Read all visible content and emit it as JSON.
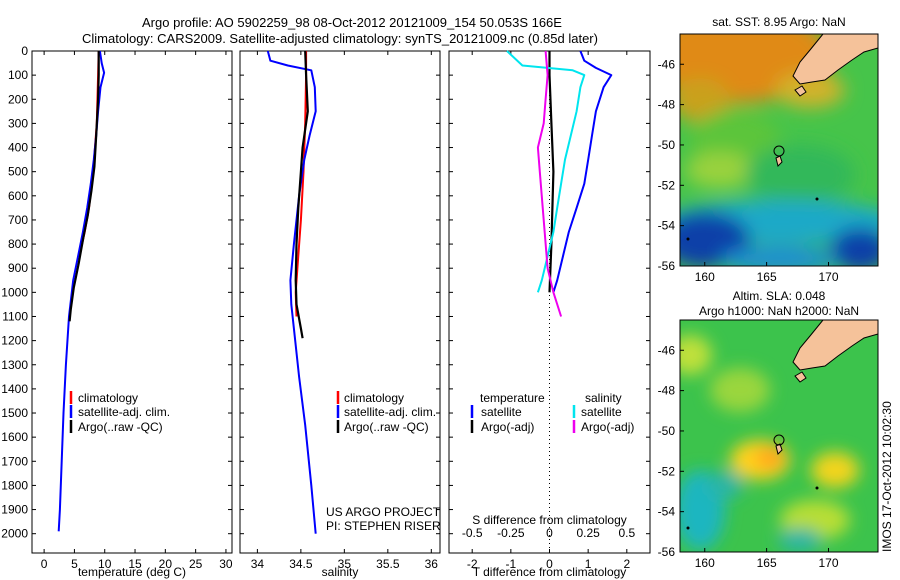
{
  "figure": {
    "title_line1": "Argo profile: AO 5902259_98 08-Oct-2012 20121009_154 50.053S 166E",
    "title_line2": "Climatology: CARS2009. Satellite-adjusted climatology: synTS_20121009.nc (0.85d later)",
    "side_stamp": "IMOS 17-Oct-2012 10:02:30",
    "project_line1": "US ARGO PROJECT",
    "project_line2": "PI: STEPHEN RISER"
  },
  "colors": {
    "climatology": "#ff0000",
    "satellite": "#0000ff",
    "argo": "#000000",
    "salinity_satellite": "#00e5ee",
    "salinity_argo": "#ee00ee",
    "land": "#f5c29a"
  },
  "chart_data": [
    {
      "type": "line",
      "name": "temperature-profile",
      "xlabel": "temperature (deg C)",
      "ylabel": "",
      "xlim": [
        -2,
        31
      ],
      "ylim": [
        0,
        2080
      ],
      "y_reversed": true,
      "xticks": [
        0,
        5,
        10,
        15,
        20,
        25,
        30
      ],
      "yticks": [
        0,
        100,
        200,
        300,
        400,
        500,
        600,
        700,
        800,
        900,
        1000,
        1100,
        1200,
        1300,
        1400,
        1500,
        1600,
        1700,
        1800,
        1900,
        2000
      ],
      "legend": [
        "climatology",
        "satellite-adj. clim.",
        "Argo(..raw -QC)"
      ],
      "legend_position": "lower-right",
      "series": [
        {
          "name": "climatology",
          "color": "#ff0000",
          "points": [
            [
              9.0,
              0
            ],
            [
              8.9,
              100
            ],
            [
              8.7,
              300
            ],
            [
              8.4,
              400
            ],
            [
              8.1,
              500
            ],
            [
              7.4,
              650
            ],
            [
              6.7,
              750
            ],
            [
              5.8,
              850
            ]
          ]
        },
        {
          "name": "satellite-adj. clim.",
          "color": "#0000ff",
          "points": [
            [
              9.2,
              0
            ],
            [
              9.5,
              50
            ],
            [
              9.9,
              90
            ],
            [
              9.3,
              150
            ],
            [
              8.9,
              250
            ],
            [
              8.6,
              350
            ],
            [
              8.2,
              450
            ],
            [
              7.7,
              550
            ],
            [
              7.1,
              650
            ],
            [
              6.4,
              750
            ],
            [
              5.6,
              850
            ],
            [
              4.8,
              950
            ],
            [
              4.1,
              1100
            ],
            [
              3.6,
              1300
            ],
            [
              3.2,
              1500
            ],
            [
              2.9,
              1700
            ],
            [
              2.6,
              1900
            ],
            [
              2.4,
              1990
            ]
          ]
        },
        {
          "name": "Argo(..raw -QC)",
          "color": "#000000",
          "points": [
            [
              9.0,
              0
            ],
            [
              9.0,
              100
            ],
            [
              8.9,
              200
            ],
            [
              8.6,
              350
            ],
            [
              8.3,
              480
            ],
            [
              7.8,
              580
            ],
            [
              7.2,
              680
            ],
            [
              6.5,
              770
            ],
            [
              5.7,
              880
            ],
            [
              4.9,
              980
            ],
            [
              4.4,
              1070
            ],
            [
              4.2,
              1120
            ]
          ]
        }
      ]
    },
    {
      "type": "line",
      "name": "salinity-profile",
      "xlabel": "salinity",
      "ylabel": "",
      "xlim": [
        33.8,
        36.1
      ],
      "ylim": [
        0,
        2080
      ],
      "y_reversed": true,
      "xticks": [
        34,
        34.5,
        35,
        35.5,
        36
      ],
      "legend": [
        "climatology",
        "satellite-adj. clim.",
        "Argo(..raw -QC)"
      ],
      "legend_position": "lower-right",
      "series": [
        {
          "name": "climatology",
          "color": "#ff0000",
          "points": [
            [
              34.56,
              0
            ],
            [
              34.56,
              100
            ],
            [
              34.55,
              300
            ],
            [
              34.53,
              500
            ],
            [
              34.5,
              700
            ],
            [
              34.46,
              900
            ],
            [
              34.44,
              1000
            ],
            [
              34.45,
              1100
            ]
          ]
        },
        {
          "name": "satellite-adj. clim.",
          "color": "#0000ff",
          "points": [
            [
              34.12,
              0
            ],
            [
              34.15,
              40
            ],
            [
              34.35,
              60
            ],
            [
              34.62,
              80
            ],
            [
              34.66,
              150
            ],
            [
              34.67,
              250
            ],
            [
              34.6,
              350
            ],
            [
              34.54,
              450
            ],
            [
              34.48,
              600
            ],
            [
              34.42,
              800
            ],
            [
              34.38,
              950
            ],
            [
              34.39,
              1050
            ],
            [
              34.42,
              1150
            ],
            [
              34.48,
              1350
            ],
            [
              34.55,
              1550
            ],
            [
              34.62,
              1800
            ],
            [
              34.67,
              2000
            ]
          ]
        },
        {
          "name": "Argo(..raw -QC)",
          "color": "#000000",
          "points": [
            [
              34.55,
              0
            ],
            [
              34.56,
              100
            ],
            [
              34.58,
              250
            ],
            [
              34.52,
              400
            ],
            [
              34.5,
              500
            ],
            [
              34.47,
              650
            ],
            [
              34.45,
              800
            ],
            [
              34.44,
              950
            ],
            [
              34.45,
              1050
            ],
            [
              34.5,
              1150
            ],
            [
              34.52,
              1190
            ]
          ]
        }
      ]
    },
    {
      "type": "line",
      "name": "difference-profile",
      "xlabel": "T difference from climatology",
      "xlabel_top": "S difference from climatology",
      "xlim": [
        -2.6,
        2.6
      ],
      "ylim": [
        0,
        2080
      ],
      "y_reversed": true,
      "xticks": [
        -2,
        -1,
        0,
        1,
        2
      ],
      "xticks_s": [
        -0.5,
        -0.25,
        0,
        0.25,
        0.5
      ],
      "xticklabels_s": [
        "-0.5",
        "-0.25",
        "0",
        "0.25",
        "0.5"
      ],
      "legend_header_t": "temperature",
      "legend_header_s": "salinity",
      "legend": [
        "satellite",
        "Argo(-adj)",
        "satellite",
        "Argo(-adj)"
      ],
      "legend_position": "lower-center",
      "series": [
        {
          "name": "temperature satellite",
          "color": "#0000ff",
          "points": [
            [
              0.8,
              0
            ],
            [
              0.9,
              40
            ],
            [
              1.2,
              70
            ],
            [
              1.6,
              100
            ],
            [
              1.4,
              150
            ],
            [
              1.2,
              250
            ],
            [
              1.1,
              350
            ],
            [
              1.0,
              450
            ],
            [
              0.9,
              550
            ],
            [
              0.7,
              650
            ],
            [
              0.5,
              750
            ],
            [
              0.35,
              850
            ],
            [
              0.2,
              950
            ],
            [
              0.1,
              1000
            ]
          ]
        },
        {
          "name": "temperature Argo(-adj)",
          "color": "#000000",
          "points": [
            [
              0.0,
              0
            ],
            [
              0.0,
              100
            ],
            [
              0.05,
              300
            ],
            [
              0.1,
              500
            ],
            [
              0.05,
              800
            ],
            [
              0.0,
              1000
            ]
          ]
        },
        {
          "name": "salinity satellite",
          "color": "#00e5ee",
          "points": [
            [
              -1.1,
              0
            ],
            [
              -0.7,
              60
            ],
            [
              0.6,
              80
            ],
            [
              0.9,
              100
            ],
            [
              0.8,
              150
            ],
            [
              0.7,
              250
            ],
            [
              0.55,
              350
            ],
            [
              0.4,
              450
            ],
            [
              0.3,
              550
            ],
            [
              0.2,
              650
            ],
            [
              0.1,
              750
            ],
            [
              -0.05,
              850
            ],
            [
              -0.2,
              950
            ],
            [
              -0.3,
              1000
            ]
          ]
        },
        {
          "name": "salinity Argo(-adj)",
          "color": "#ee00ee",
          "points": [
            [
              -0.1,
              0
            ],
            [
              -0.05,
              100
            ],
            [
              -0.1,
              200
            ],
            [
              -0.15,
              300
            ],
            [
              -0.3,
              400
            ],
            [
              -0.25,
              500
            ],
            [
              -0.15,
              700
            ],
            [
              -0.05,
              900
            ],
            [
              0.1,
              1000
            ],
            [
              0.3,
              1100
            ]
          ]
        }
      ]
    },
    {
      "type": "heatmap",
      "name": "sst-map",
      "title": "sat. SST: 8.95  Argo: NaN",
      "xlim": [
        158,
        174
      ],
      "ylim": [
        -56,
        -44.5
      ],
      "xticks": [
        160,
        165,
        170
      ],
      "yticks": [
        -46,
        -48,
        -50,
        -52,
        -54,
        -56
      ],
      "marker": {
        "lon": 166,
        "lat": -50.05
      }
    },
    {
      "type": "heatmap",
      "name": "sla-map",
      "title_line1": "Altim. SLA: 0.048",
      "title_line2": "Argo h1000: NaN  h2000: NaN",
      "xlim": [
        158,
        174
      ],
      "ylim": [
        -56,
        -44.5
      ],
      "xticks": [
        160,
        165,
        170
      ],
      "yticks": [
        -46,
        -48,
        -50,
        -52,
        -54,
        -56
      ],
      "marker": {
        "lon": 166,
        "lat": -50.05
      }
    }
  ]
}
